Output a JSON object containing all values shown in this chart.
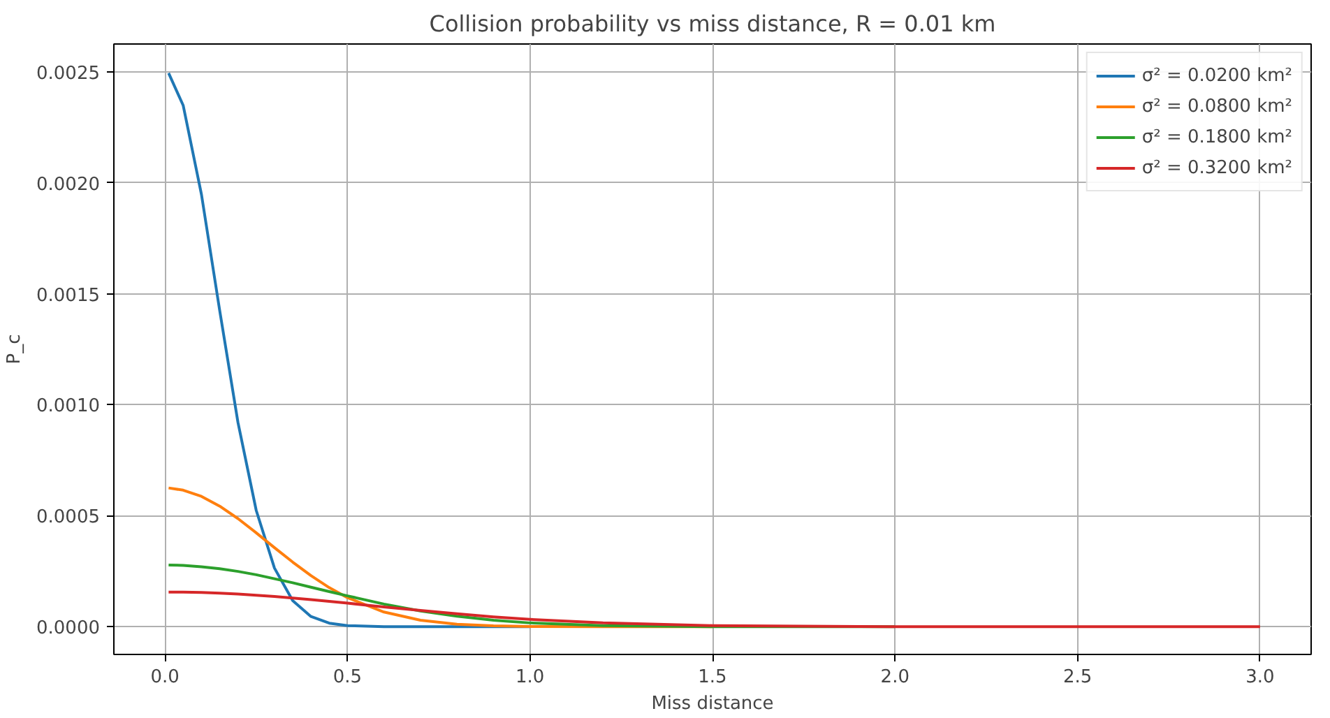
{
  "chart_data": {
    "type": "line",
    "title": "Collision probability vs miss distance, R = 0.01 km",
    "xlabel": "Miss distance",
    "ylabel": "P_c",
    "xlim": [
      -0.14,
      3.14
    ],
    "ylim": [
      -0.000125,
      0.002625
    ],
    "xticks": [
      {
        "value": 0,
        "label": "0.0"
      },
      {
        "value": 0.5,
        "label": "0.5"
      },
      {
        "value": 1,
        "label": "1.0"
      },
      {
        "value": 1.5,
        "label": "1.5"
      },
      {
        "value": 2,
        "label": "2.0"
      },
      {
        "value": 2.5,
        "label": "2.5"
      },
      {
        "value": 3,
        "label": "3.0"
      }
    ],
    "yticks": [
      {
        "value": 0,
        "label": "0.0000"
      },
      {
        "value": 0.0005,
        "label": "0.0005"
      },
      {
        "value": 0.001,
        "label": "0.0010"
      },
      {
        "value": 0.0015,
        "label": "0.0015"
      },
      {
        "value": 0.002,
        "label": "0.0020"
      },
      {
        "value": 0.0025,
        "label": "0.0025"
      }
    ],
    "grid": true,
    "legend": "top right",
    "marker": "none",
    "line_style": "solid",
    "x": [
      0.01,
      0.05,
      0.1,
      0.15,
      0.2,
      0.25,
      0.3,
      0.35,
      0.4,
      0.45,
      0.5,
      0.6,
      0.7,
      0.8,
      0.9,
      1.0,
      1.2,
      1.5,
      2.0,
      2.5,
      3.0
    ],
    "series": [
      {
        "name": "σ² = 0.0200 km²",
        "color": "#1f77b4",
        "values": [
          0.002494,
          0.002348,
          0.001947,
          0.001424,
          0.00092,
          0.000524,
          0.000264,
          0.000117,
          4.6e-05,
          1.6e-05,
          5e-06,
          0,
          0,
          0,
          0,
          0,
          null,
          null,
          null,
          null,
          null
        ]
      },
      {
        "name": "σ² = 0.0800 km²",
        "color": "#ff7f0e",
        "values": [
          0.000625,
          0.000615,
          0.000587,
          0.000543,
          0.000487,
          0.000423,
          0.000356,
          0.000291,
          0.00023,
          0.000176,
          0.000131,
          6.6e-05,
          2.9e-05,
          1.1e-05,
          4e-06,
          1e-06,
          0,
          0,
          null,
          null,
          null
        ]
      },
      {
        "name": "σ² = 0.1800 km²",
        "color": "#2ca02c",
        "values": [
          0.000278,
          0.000276,
          0.00027,
          0.000261,
          0.000249,
          0.000234,
          0.000216,
          0.000198,
          0.000178,
          0.000158,
          0.000139,
          0.000102,
          7.1e-05,
          4.7e-05,
          2.9e-05,
          1.7e-05,
          5e-06,
          0,
          0,
          null,
          null
        ]
      },
      {
        "name": "σ² = 0.3200 km²",
        "color": "#d62728",
        "values": [
          0.000156,
          0.000156,
          0.000154,
          0.000151,
          0.000147,
          0.000142,
          0.000136,
          0.000129,
          0.000122,
          0.000114,
          0.000106,
          8.9e-05,
          7.3e-05,
          5.8e-05,
          4.4e-05,
          3.3e-05,
          1.7e-05,
          5e-06,
          0,
          0,
          0
        ]
      }
    ]
  }
}
